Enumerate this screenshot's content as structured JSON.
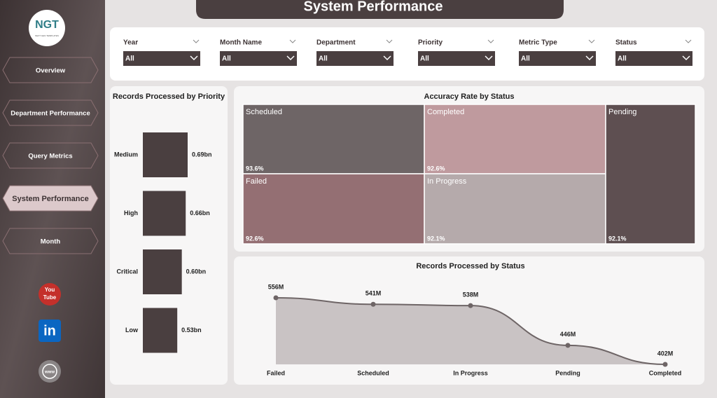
{
  "header": {
    "title": "System Performance"
  },
  "sidebar": {
    "logo": "NGT",
    "logo_sub": "NEXT GEN TEMPLATES",
    "nav": [
      "Overview",
      "Department Performance",
      "Query Metrics",
      "System Performance",
      "Month"
    ],
    "icons": {
      "youtube": [
        "You",
        "Tube"
      ],
      "linkedin": "in",
      "web": "www"
    }
  },
  "filters": [
    {
      "label": "Year",
      "value": "All"
    },
    {
      "label": "Month Name",
      "value": "All"
    },
    {
      "label": "Department",
      "value": "All"
    },
    {
      "label": "Priority",
      "value": "All"
    },
    {
      "label": "Metric Type",
      "value": "All"
    },
    {
      "label": "Status",
      "value": "All"
    }
  ],
  "chart_data": [
    {
      "type": "hbar",
      "title": "Records Processed by Priority",
      "categories": [
        "Medium",
        "High",
        "Critical",
        "Low"
      ],
      "values": [
        0.69,
        0.66,
        0.6,
        0.53
      ],
      "value_labels": [
        "0.69bn",
        "0.66bn",
        "0.60bn",
        "0.53bn"
      ],
      "color": "#4a3f40"
    },
    {
      "type": "treemap",
      "title": "Accuracy Rate by Status",
      "categories": [
        "Scheduled",
        "Completed",
        "Failed",
        "In Progress",
        "Pending"
      ],
      "values": [
        93.6,
        92.6,
        92.6,
        92.1,
        92.1
      ],
      "value_labels": [
        "93.6%",
        "92.6%",
        "92.6%",
        "92.1%",
        "92.1%"
      ],
      "colors": [
        "#6e6566",
        "#bf9a9e",
        "#946f73",
        "#b5aaab",
        "#5e4f51"
      ]
    },
    {
      "type": "area",
      "title": "Records Processed by Status",
      "categories": [
        "Failed",
        "Scheduled",
        "In Progress",
        "Pending",
        "Completed"
      ],
      "values": [
        556,
        541,
        538,
        446,
        402
      ],
      "value_labels": [
        "556M",
        "541M",
        "538M",
        "446M",
        "402M"
      ],
      "color": "#6e6566",
      "fill": "#c9c3c4"
    }
  ]
}
